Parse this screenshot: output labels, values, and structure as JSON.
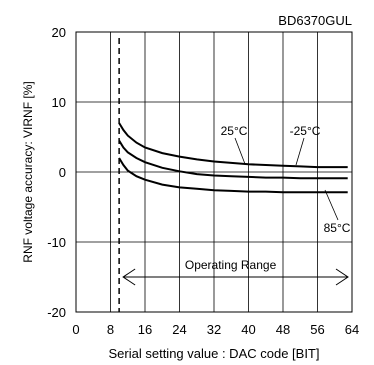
{
  "chart_data": {
    "type": "line",
    "title": "BD6370GUL",
    "xlabel": "Serial setting value : DAC code [BIT]",
    "ylabel": "RNF voltage accuracy: VIRNF [%]",
    "xlim": [
      0,
      64
    ],
    "ylim": [
      -20,
      20
    ],
    "xticks": [
      "0",
      "8",
      "16",
      "24",
      "32",
      "40",
      "48",
      "56",
      "64"
    ],
    "yticks": [
      "20",
      "10",
      "0",
      "-10",
      "-20"
    ],
    "grid": true,
    "series": [
      {
        "name": "-25°C",
        "x": [
          10,
          11,
          12,
          14,
          16,
          20,
          24,
          28,
          32,
          36,
          40,
          44,
          48,
          52,
          56,
          60,
          63
        ],
        "y": [
          7.0,
          6.0,
          5.2,
          4.2,
          3.5,
          2.7,
          2.2,
          1.8,
          1.5,
          1.3,
          1.1,
          1.0,
          0.9,
          0.8,
          0.7,
          0.7,
          0.7
        ]
      },
      {
        "name": "25°C",
        "x": [
          10,
          11,
          12,
          14,
          16,
          20,
          24,
          28,
          32,
          36,
          40,
          44,
          48,
          52,
          56,
          60,
          63
        ],
        "y": [
          4.5,
          3.5,
          2.8,
          2.0,
          1.4,
          0.6,
          0.1,
          -0.3,
          -0.5,
          -0.6,
          -0.7,
          -0.8,
          -0.8,
          -0.9,
          -0.9,
          -0.9,
          -0.9
        ]
      },
      {
        "name": "85°C",
        "x": [
          10,
          11,
          12,
          14,
          16,
          20,
          24,
          28,
          32,
          36,
          40,
          44,
          48,
          52,
          56,
          60,
          63
        ],
        "y": [
          2.0,
          1.0,
          0.2,
          -0.6,
          -1.1,
          -1.8,
          -2.2,
          -2.4,
          -2.6,
          -2.7,
          -2.8,
          -2.8,
          -2.9,
          -2.9,
          -2.9,
          -2.9,
          -2.9
        ]
      }
    ],
    "markers": [
      {
        "x": 10,
        "style": "dashed"
      }
    ],
    "annotations": [
      {
        "text": "Operating Range",
        "type": "range-arrow",
        "x_from": 10,
        "x_to": 64,
        "y": -15
      }
    ]
  }
}
